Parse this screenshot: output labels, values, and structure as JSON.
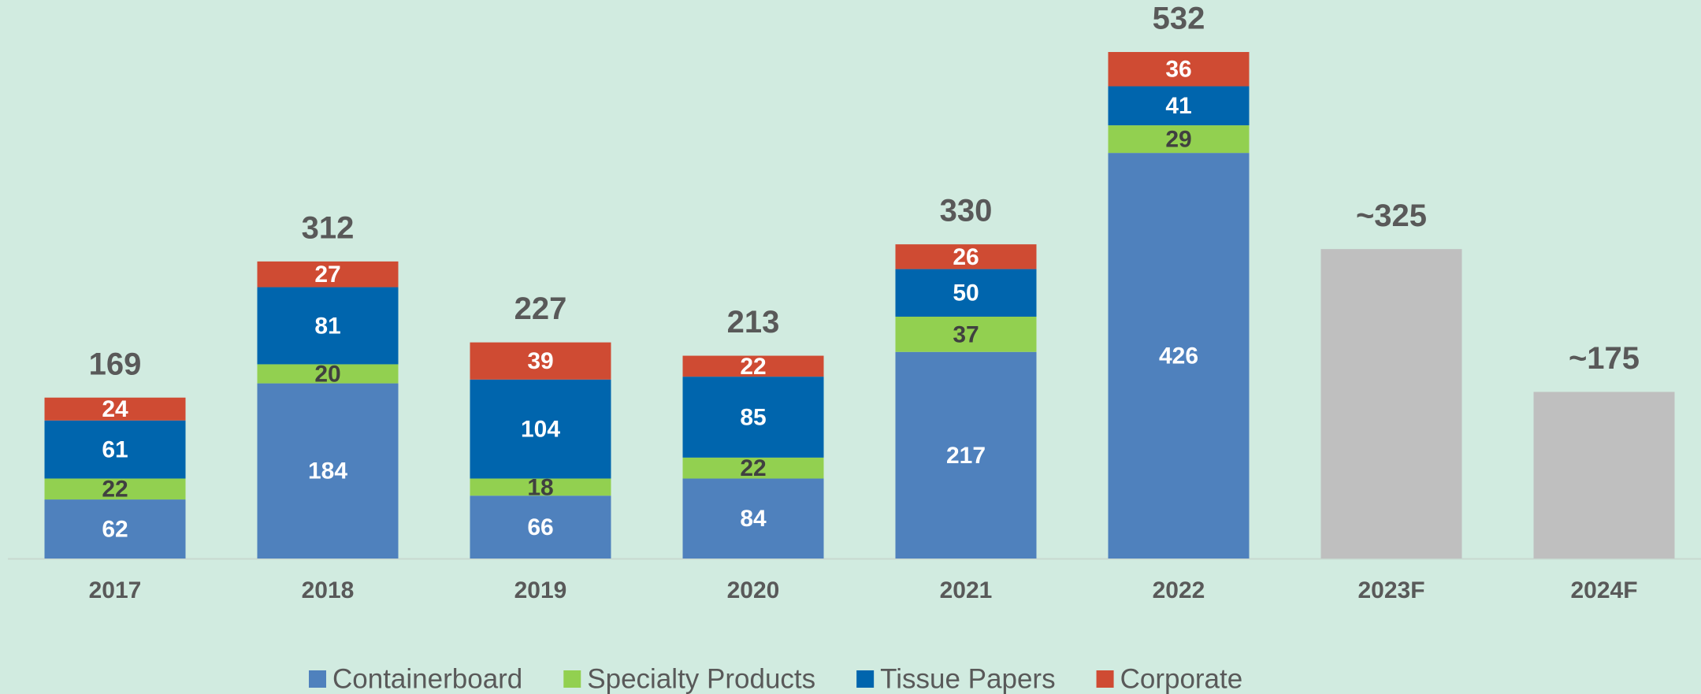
{
  "chart_data": {
    "type": "stacked_bar",
    "categories": [
      "2017",
      "2018",
      "2019",
      "2020",
      "2021",
      "2022",
      "2023F",
      "2024F"
    ],
    "series": [
      {
        "name": "Containerboard",
        "color": "#4f81bd",
        "values": [
          62,
          184,
          66,
          84,
          217,
          426,
          null,
          null
        ]
      },
      {
        "name": "Specialty Products",
        "color": "#92d050",
        "values": [
          22,
          20,
          18,
          22,
          37,
          29,
          null,
          null
        ]
      },
      {
        "name": "Tissue Papers",
        "color": "#0065ad",
        "values": [
          61,
          81,
          104,
          85,
          50,
          41,
          null,
          null
        ]
      },
      {
        "name": "Corporate",
        "color": "#cf4b33",
        "values": [
          24,
          27,
          39,
          22,
          26,
          36,
          null,
          null
        ]
      }
    ],
    "totals": {
      "color": "#bfbfbf",
      "values": [
        169,
        312,
        227,
        213,
        330,
        532,
        325,
        175
      ],
      "value_labels": [
        "169",
        "312",
        "227",
        "213",
        "330",
        "532",
        "~325",
        "~175"
      ]
    },
    "ylim": [
      0,
      580
    ]
  }
}
